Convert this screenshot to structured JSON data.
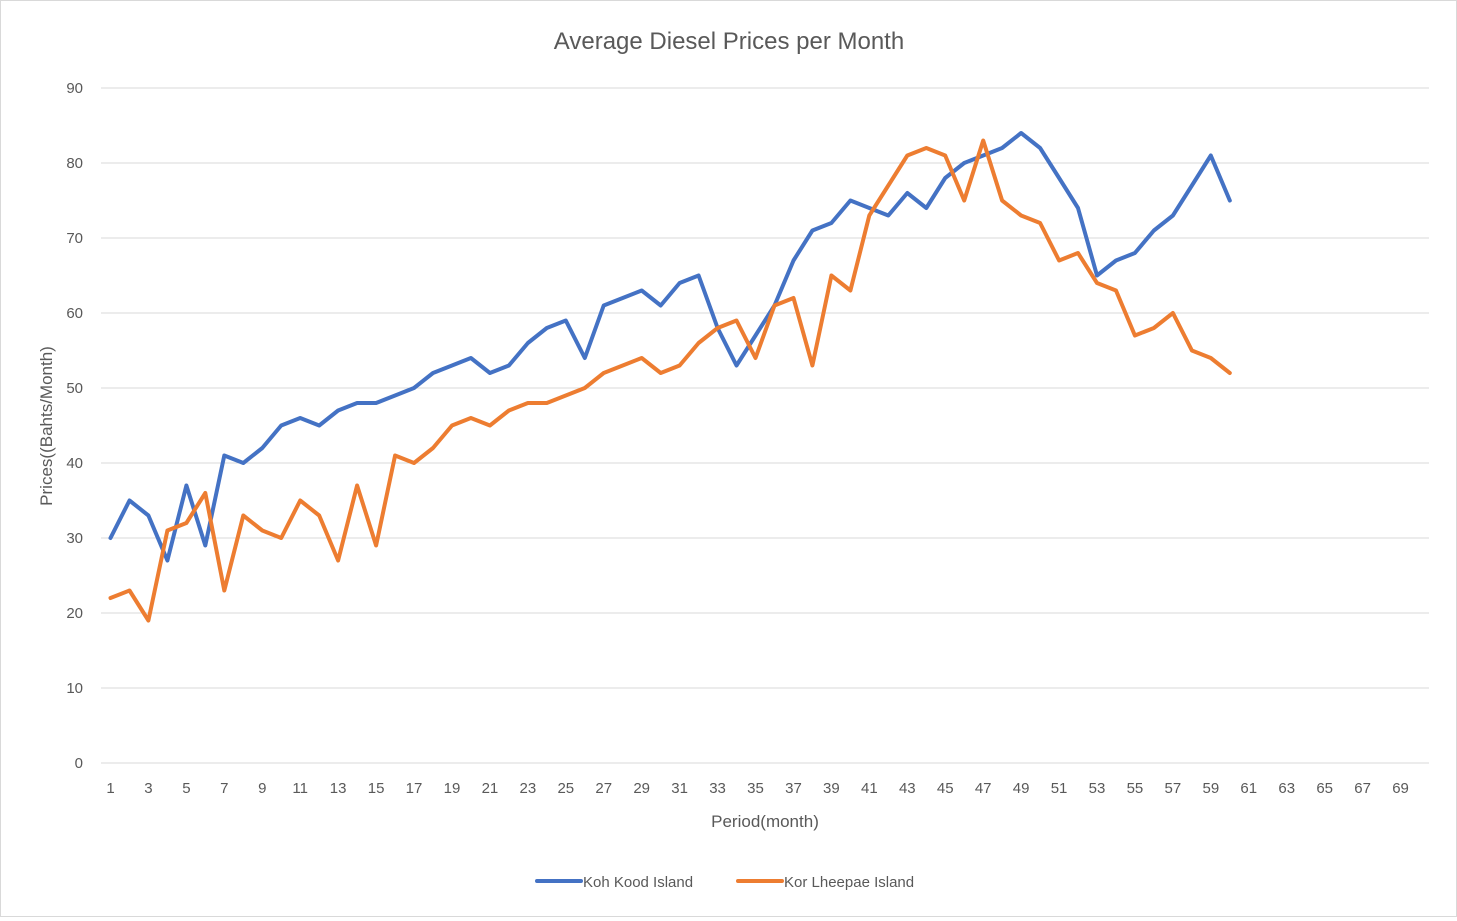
{
  "chart_data": {
    "type": "line",
    "title": "Average Diesel Prices per Month",
    "xlabel": "Period(month)",
    "ylabel": "Prices((Bahts/Month)",
    "ylim": [
      0,
      90
    ],
    "yticks": [
      0,
      10,
      20,
      30,
      40,
      50,
      60,
      70,
      80,
      90
    ],
    "xlim": [
      1,
      70
    ],
    "xticks": [
      1,
      3,
      5,
      7,
      9,
      11,
      13,
      15,
      17,
      19,
      21,
      23,
      25,
      27,
      29,
      31,
      33,
      35,
      37,
      39,
      41,
      43,
      45,
      47,
      49,
      51,
      53,
      55,
      57,
      59,
      61,
      63,
      65,
      67,
      69
    ],
    "grid": "horizontal",
    "legend_position": "bottom",
    "x": [
      1,
      2,
      3,
      4,
      5,
      6,
      7,
      8,
      9,
      10,
      11,
      12,
      13,
      14,
      15,
      16,
      17,
      18,
      19,
      20,
      21,
      22,
      23,
      24,
      25,
      26,
      27,
      28,
      29,
      30,
      31,
      32,
      33,
      34,
      35,
      36,
      37,
      38,
      39,
      40,
      41,
      42,
      43,
      44,
      45,
      46,
      47,
      48,
      49,
      50,
      51,
      52,
      53,
      54,
      55,
      56,
      57,
      58,
      59,
      60
    ],
    "series": [
      {
        "name": "Koh Kood Island",
        "color": "#4472c4",
        "values": [
          30,
          35,
          33,
          27,
          37,
          29,
          41,
          40,
          42,
          45,
          46,
          45,
          47,
          48,
          48,
          49,
          50,
          52,
          53,
          54,
          52,
          53,
          56,
          58,
          59,
          54,
          61,
          62,
          63,
          61,
          64,
          65,
          58,
          53,
          57,
          61,
          67,
          71,
          72,
          75,
          74,
          73,
          76,
          74,
          78,
          80,
          81,
          82,
          84,
          82,
          78,
          74,
          65,
          67,
          68,
          71,
          73,
          77,
          81,
          75
        ]
      },
      {
        "name": "Kor Lheepae Island",
        "color": "#ed7d31",
        "values": [
          22,
          23,
          19,
          31,
          32,
          36,
          23,
          33,
          31,
          30,
          35,
          33,
          27,
          37,
          29,
          41,
          40,
          42,
          45,
          46,
          45,
          47,
          48,
          48,
          49,
          50,
          52,
          53,
          54,
          52,
          53,
          56,
          58,
          59,
          54,
          61,
          62,
          53,
          65,
          63,
          73,
          77,
          81,
          82,
          81,
          75,
          83,
          75,
          73,
          72,
          67,
          68,
          64,
          63,
          57,
          58,
          60,
          55,
          54,
          52
        ]
      }
    ]
  }
}
